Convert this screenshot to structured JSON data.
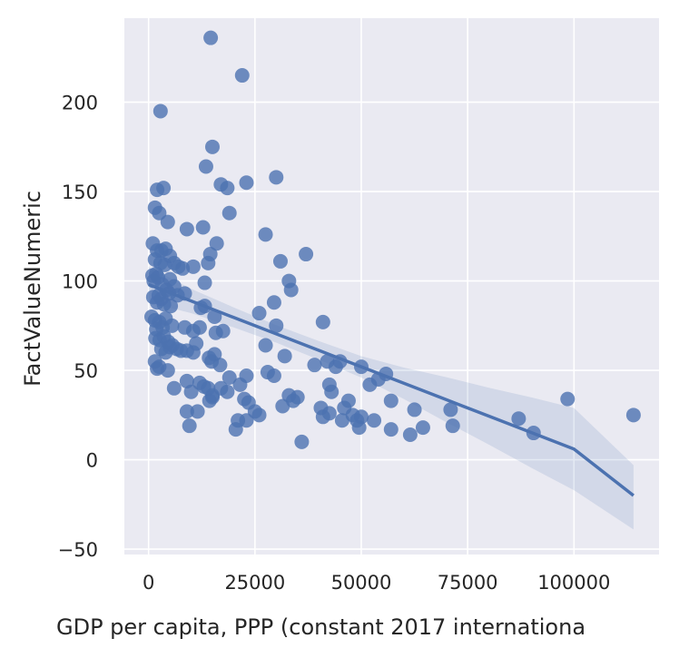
{
  "chart_data": {
    "type": "scatter",
    "title": "",
    "xlabel": "GDP per capita, PPP (constant 2017 internationa",
    "ylabel": "FactValueNumeric",
    "xlim": [
      -5700,
      120000
    ],
    "ylim": [
      -53,
      247
    ],
    "xticks": [
      0,
      25000,
      50000,
      75000,
      100000
    ],
    "yticks": [
      -50,
      0,
      50,
      100,
      150,
      200
    ],
    "grid": true,
    "legend": "none",
    "colors": {
      "background": "#eaeaf2",
      "grid": "#ffffff",
      "points": "#4c72b0",
      "band": "#4c72b0"
    },
    "regression": {
      "x": [
        0,
        10000,
        20000,
        30000,
        40000,
        50000,
        60000,
        70000,
        80000,
        90000,
        100000,
        114000
      ],
      "y": [
        98,
        88.8,
        79.6,
        70.4,
        61.2,
        52,
        42.8,
        33.6,
        24.4,
        15.2,
        6,
        -20
      ],
      "ci_lower": [
        88,
        82,
        74,
        65.5,
        56,
        46,
        34,
        21,
        8.5,
        -4.5,
        -17,
        -39
      ],
      "ci_upper": [
        108,
        95.6,
        85.2,
        75.3,
        66.4,
        58,
        51.6,
        46.2,
        40.3,
        34.9,
        29,
        -3
      ]
    },
    "series": [
      {
        "points": [
          [
            14600,
            236
          ],
          [
            22000,
            215
          ],
          [
            2800,
            195
          ],
          [
            15000,
            175
          ],
          [
            13500,
            164
          ],
          [
            17000,
            154
          ],
          [
            18500,
            152
          ],
          [
            23000,
            155
          ],
          [
            30000,
            158
          ],
          [
            2000,
            151
          ],
          [
            3500,
            152
          ],
          [
            12800,
            130
          ],
          [
            19000,
            138
          ],
          [
            1500,
            141
          ],
          [
            2500,
            138
          ],
          [
            4500,
            133
          ],
          [
            9000,
            129
          ],
          [
            27500,
            126
          ],
          [
            16000,
            121
          ],
          [
            1000,
            121
          ],
          [
            2000,
            117
          ],
          [
            3000,
            117
          ],
          [
            4000,
            118
          ],
          [
            5000,
            114
          ],
          [
            6000,
            110
          ],
          [
            7000,
            108
          ],
          [
            8000,
            107
          ],
          [
            10500,
            108
          ],
          [
            14000,
            110
          ],
          [
            14500,
            115
          ],
          [
            31000,
            111
          ],
          [
            37000,
            115
          ],
          [
            1500,
            112
          ],
          [
            2800,
            110
          ],
          [
            3800,
            109
          ],
          [
            13200,
            99
          ],
          [
            33000,
            100
          ],
          [
            33500,
            95
          ],
          [
            5000,
            101
          ],
          [
            6000,
            97
          ],
          [
            900,
            103
          ],
          [
            1200,
            100
          ],
          [
            1800,
            104
          ],
          [
            2200,
            102
          ],
          [
            3200,
            98
          ],
          [
            4200,
            95
          ],
          [
            1100,
            91
          ],
          [
            2400,
            92
          ],
          [
            3000,
            90
          ],
          [
            4800,
            93
          ],
          [
            6800,
            92
          ],
          [
            8500,
            93
          ],
          [
            2000,
            88
          ],
          [
            3600,
            87
          ],
          [
            5200,
            86
          ],
          [
            13200,
            86
          ],
          [
            29500,
            88
          ],
          [
            12300,
            85
          ],
          [
            700,
            80
          ],
          [
            1500,
            78
          ],
          [
            2500,
            77
          ],
          [
            4000,
            79
          ],
          [
            15500,
            80
          ],
          [
            26000,
            82
          ],
          [
            41000,
            77
          ],
          [
            30000,
            75
          ],
          [
            1800,
            73
          ],
          [
            3300,
            74
          ],
          [
            5500,
            75
          ],
          [
            8500,
            74
          ],
          [
            12000,
            74
          ],
          [
            10500,
            72
          ],
          [
            15800,
            71
          ],
          [
            17500,
            72
          ],
          [
            1600,
            68
          ],
          [
            2600,
            67
          ],
          [
            3600,
            69
          ],
          [
            4600,
            66
          ],
          [
            5600,
            64
          ],
          [
            6600,
            62
          ],
          [
            7600,
            61
          ],
          [
            9000,
            61
          ],
          [
            10500,
            60
          ],
          [
            3000,
            62
          ],
          [
            4000,
            60
          ],
          [
            5000,
            63
          ],
          [
            11200,
            65
          ],
          [
            27500,
            64
          ],
          [
            32000,
            58
          ],
          [
            15500,
            59
          ],
          [
            14200,
            57
          ],
          [
            16800,
            53
          ],
          [
            14800,
            55
          ],
          [
            1500,
            55
          ],
          [
            2500,
            52
          ],
          [
            2000,
            51
          ],
          [
            4500,
            50
          ],
          [
            39000,
            53
          ],
          [
            42000,
            55
          ],
          [
            45000,
            55
          ],
          [
            44000,
            52
          ],
          [
            50000,
            52
          ],
          [
            28000,
            49
          ],
          [
            29500,
            47
          ],
          [
            23000,
            47
          ],
          [
            19000,
            46
          ],
          [
            21500,
            42
          ],
          [
            6000,
            40
          ],
          [
            10000,
            38
          ],
          [
            9000,
            44
          ],
          [
            12000,
            43
          ],
          [
            13000,
            41
          ],
          [
            14000,
            40
          ],
          [
            15000,
            36
          ],
          [
            17000,
            40
          ],
          [
            18500,
            38
          ],
          [
            42500,
            42
          ],
          [
            43000,
            38
          ],
          [
            47000,
            33
          ],
          [
            52000,
            42
          ],
          [
            54000,
            45
          ],
          [
            55800,
            48
          ],
          [
            22500,
            34
          ],
          [
            23500,
            32
          ],
          [
            33000,
            36
          ],
          [
            35000,
            35
          ],
          [
            31500,
            30
          ],
          [
            34000,
            33
          ],
          [
            14300,
            33
          ],
          [
            15000,
            35
          ],
          [
            57000,
            33
          ],
          [
            71000,
            28
          ],
          [
            62500,
            28
          ],
          [
            98500,
            34
          ],
          [
            40500,
            29
          ],
          [
            41000,
            24
          ],
          [
            42500,
            26
          ],
          [
            46000,
            29
          ],
          [
            48000,
            25
          ],
          [
            49000,
            22
          ],
          [
            50000,
            24
          ],
          [
            49500,
            18
          ],
          [
            9000,
            27
          ],
          [
            11500,
            27
          ],
          [
            21000,
            22
          ],
          [
            23000,
            22
          ],
          [
            25000,
            27
          ],
          [
            26000,
            25
          ],
          [
            53000,
            22
          ],
          [
            20500,
            17
          ],
          [
            9600,
            19
          ],
          [
            57000,
            17
          ],
          [
            61500,
            14
          ],
          [
            64500,
            18
          ],
          [
            71500,
            19
          ],
          [
            87000,
            23
          ],
          [
            90500,
            15
          ],
          [
            114000,
            25
          ],
          [
            36000,
            10
          ],
          [
            45500,
            22
          ]
        ]
      }
    ]
  }
}
